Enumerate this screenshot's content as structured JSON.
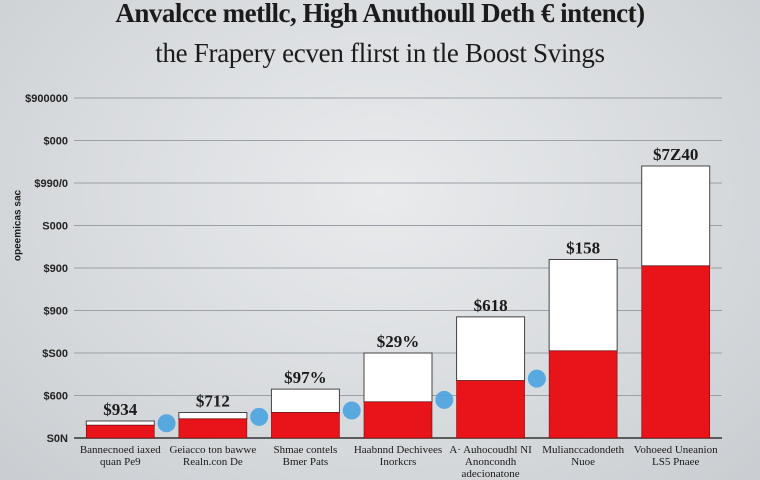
{
  "chart_data": {
    "type": "bar",
    "title": "Anvalcce metllc, High Anuthoull Deth € intenct)",
    "subtitle": "the Frapery ecven flirst in tle Boost Svings",
    "ylabel": "opeemicas sac",
    "y_ticks": [
      "$900000",
      "$000",
      "$990/0",
      "S000",
      "$900",
      "$900",
      "$S00",
      "$600",
      "S0N"
    ],
    "ylim": [
      0,
      8
    ],
    "categories": [
      [
        "Bannecnoed iaxed",
        "quan Pe9"
      ],
      [
        "Geiacco ton bawwe",
        "Realn.con De"
      ],
      [
        "Shmae contels",
        "Bmer Pats"
      ],
      [
        "Haabnnd Dechivees",
        "Inorkcrs"
      ],
      [
        "A· Auhocoudhl NI",
        "Anoncondh",
        "adecionatone"
      ],
      [
        "Mulianccadondeth",
        "Nuoe"
      ],
      [
        "Vohoeed Uneanion",
        "LS5 Pnaee"
      ]
    ],
    "data_labels": [
      "$934",
      "$712",
      "$97%",
      "$29%",
      "$618",
      "$158",
      "$7Z40"
    ],
    "series": [
      {
        "values": [
          0.3,
          0.45,
          0.6,
          0.85,
          1.35,
          2.05,
          4.05
        ],
        "color": "#e8141a"
      },
      {
        "values": [
          0.1,
          0.15,
          0.55,
          1.15,
          1.5,
          2.15,
          2.35
        ],
        "color": "#ffffff"
      }
    ],
    "grid": true
  }
}
